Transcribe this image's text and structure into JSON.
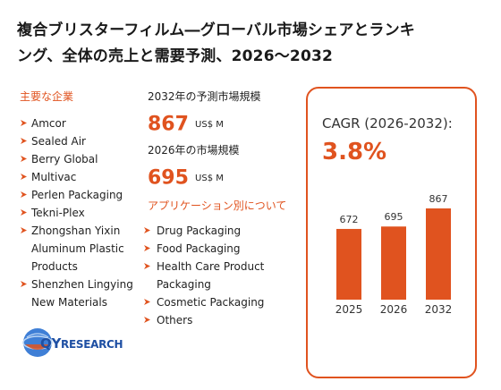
{
  "title": {
    "line1": "複合ブリスターフィルム―グローバル市場シェアとランキ",
    "line2": "ング、全体の売上と需要予測、2026～2032"
  },
  "players": {
    "heading": "主要な企業",
    "items": [
      "Amcor",
      "Sealed Air",
      "Berry Global",
      "Multivac",
      "Perlen Packaging",
      "Tekni-Plex",
      "Zhongshan Yixin",
      "Aluminum Plastic",
      "Products",
      "Shenzhen Lingying",
      "New Materials"
    ]
  },
  "stats": {
    "forecast_label": "2032年の予測市場規模",
    "forecast_value": "867",
    "forecast_unit": "US$ M",
    "current_label": "2026年の市場規模",
    "current_value": "695",
    "current_unit": "US$ M"
  },
  "applications": {
    "heading": "アプリケーション別について",
    "items": [
      "Drug Packaging",
      "Food Packaging",
      "Health Care Product",
      "Packaging",
      "Cosmetic Packaging",
      "Others"
    ]
  },
  "cagr": {
    "label": "CAGR (2026-2032):",
    "value": "3.8%"
  },
  "chart_data": {
    "type": "bar",
    "categories": [
      "2025",
      "2026",
      "2032"
    ],
    "values": [
      672,
      695,
      867
    ],
    "data_labels": [
      "672",
      "695",
      "867"
    ],
    "title": "",
    "xlabel": "",
    "ylabel": "",
    "ylim": [
      0,
      867
    ],
    "grid": false,
    "bar_color": "#e0531f"
  },
  "logo": {
    "text_qy": "QY",
    "text_rest": "RESEARCH"
  },
  "colors": {
    "accent": "#e0531f",
    "brand_blue": "#1e4fa3"
  }
}
